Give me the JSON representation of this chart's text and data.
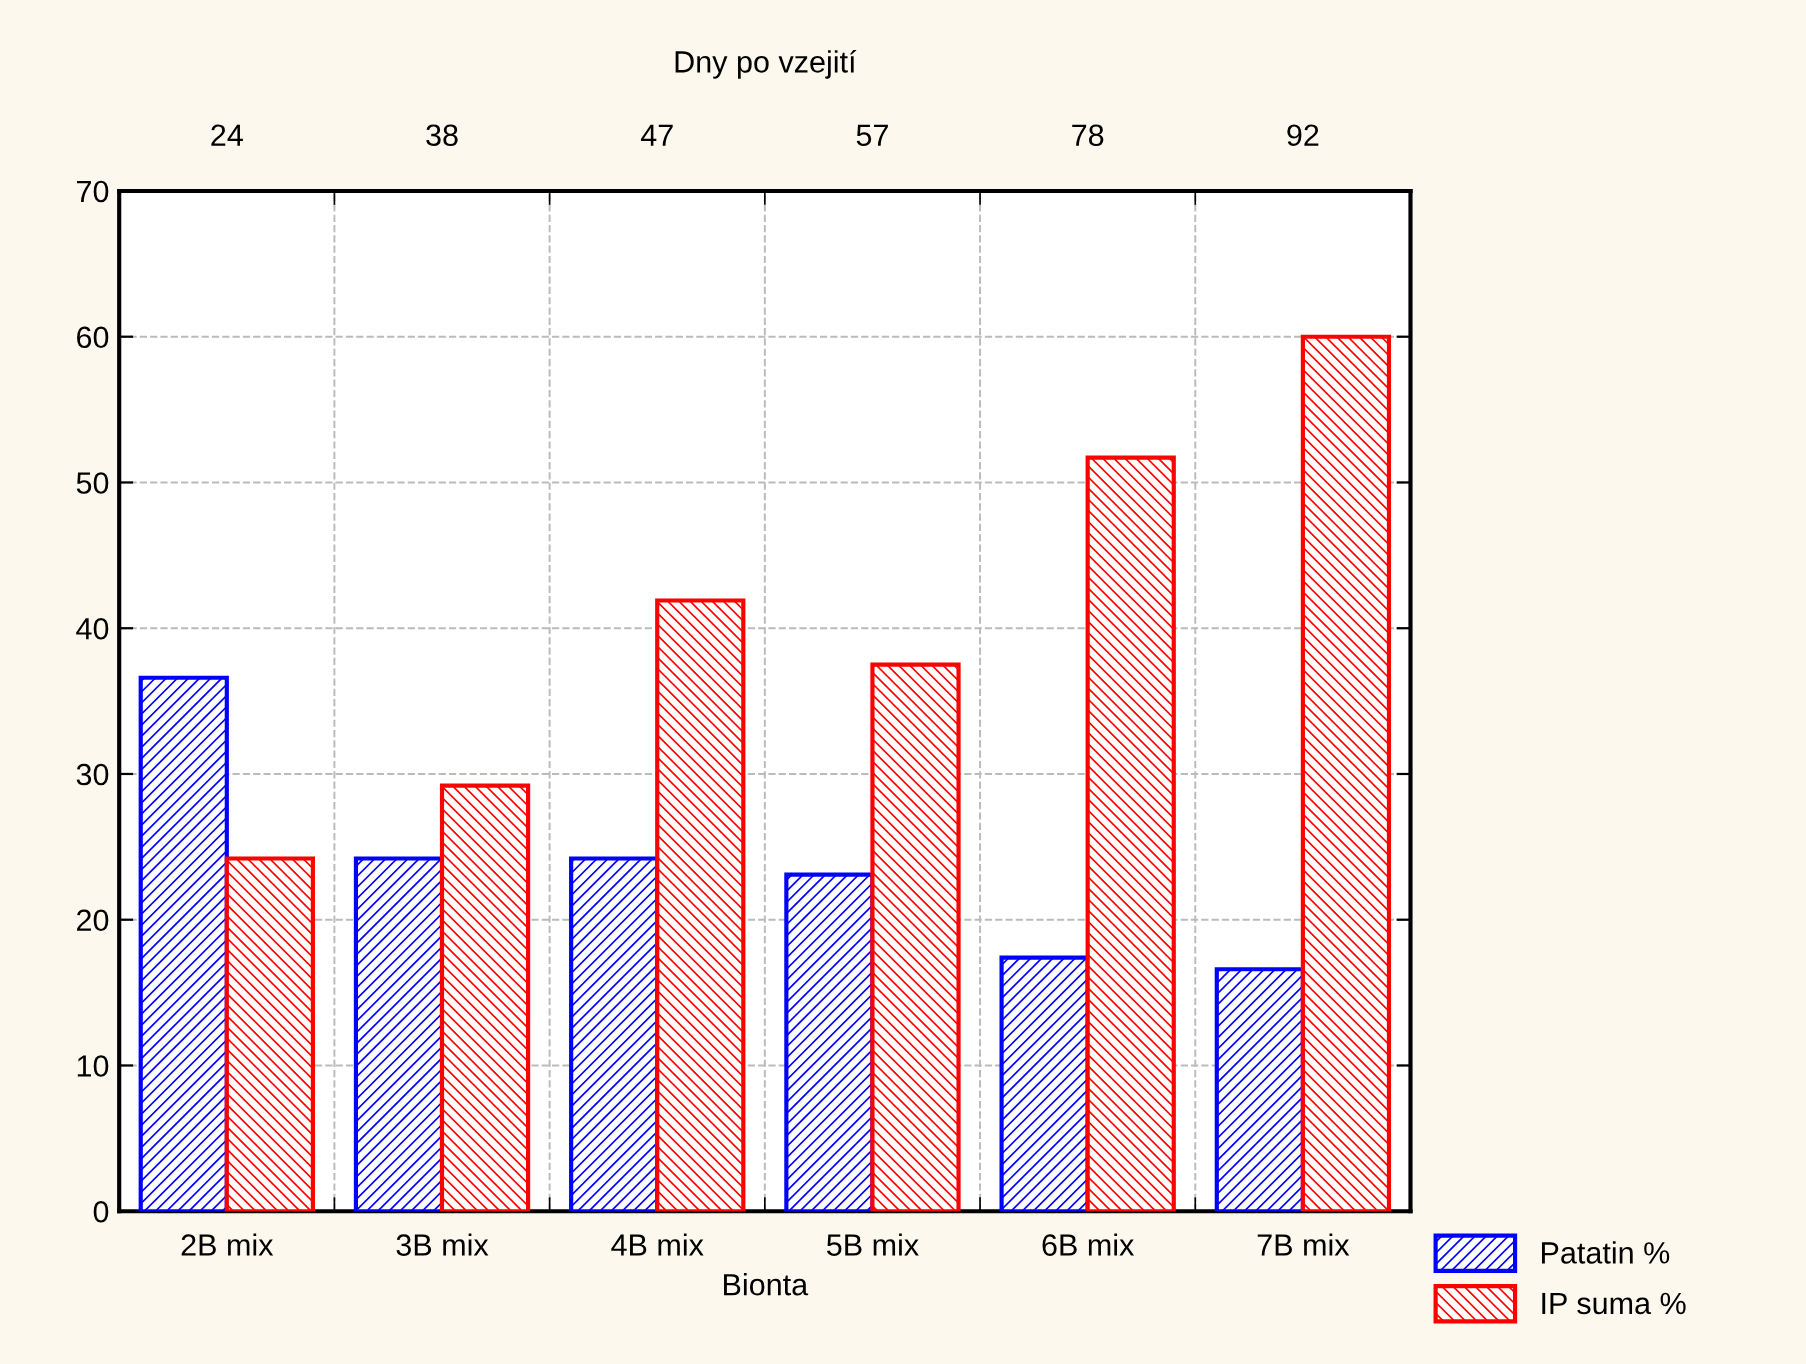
{
  "chart_data": {
    "type": "bar",
    "categories": [
      "2B mix",
      "3B mix",
      "4B mix",
      "5B mix",
      "6B mix",
      "7B mix"
    ],
    "xlabel": "Bionta",
    "x2label": "Dny po vzejití",
    "annotations": [
      "24",
      "38",
      "47",
      "57",
      "78",
      "92"
    ],
    "series": [
      {
        "name": "Patatin %",
        "color": "#0000ff",
        "values": [
          36.6,
          24.2,
          24.2,
          23.1,
          17.4,
          16.6
        ]
      },
      {
        "name": "IP suma %",
        "color": "#ff0000",
        "values": [
          24.2,
          29.2,
          41.9,
          37.5,
          51.7,
          60.0
        ]
      }
    ],
    "ylim": [
      0,
      70
    ],
    "yticks": [
      0,
      10,
      20,
      30,
      40,
      50,
      60,
      70
    ],
    "grid": true,
    "legend": "bottom right"
  }
}
